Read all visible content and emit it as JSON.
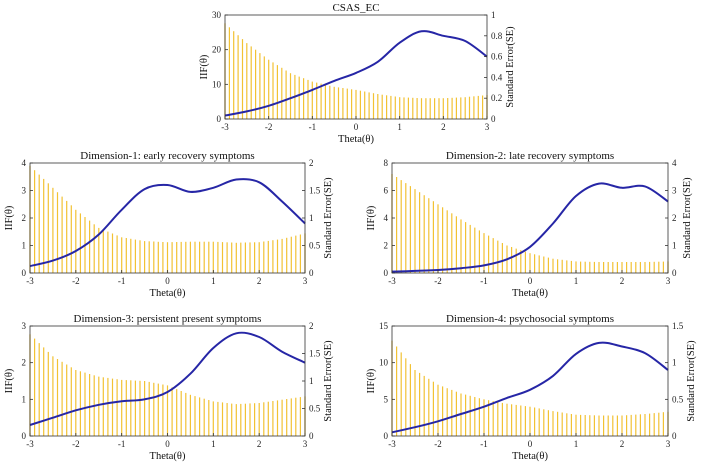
{
  "chart_data": [
    {
      "type": "line+bar",
      "title": "CSAS_EC",
      "xlabel": "Theta(θ)",
      "ylabel_left": "IIF(θ)",
      "ylabel_right": "Standard Error(SE)",
      "xlim": [
        -3,
        3
      ],
      "ylim_left": [
        0,
        30
      ],
      "ylim_right": [
        0,
        1
      ],
      "xticks": [
        "-3",
        "-2",
        "-1",
        "0",
        "1",
        "2",
        "3"
      ],
      "yticks_left": [
        "0",
        "10",
        "20",
        "30"
      ],
      "yticks_right": [
        "0",
        "0.2",
        "0.4",
        "0.6",
        "0.8",
        "1"
      ],
      "iif": {
        "x": [
          -3,
          -2.5,
          -2,
          -1.5,
          -1,
          -0.5,
          0,
          0.5,
          1,
          1.5,
          2,
          2.5,
          3
        ],
        "y": [
          1,
          2.2,
          3.8,
          6,
          8.4,
          11,
          13.3,
          16.5,
          22,
          25.3,
          24,
          22.5,
          18
        ]
      },
      "se": {
        "x": [
          -3,
          -2.5,
          -2,
          -1.5,
          -1,
          -0.5,
          0,
          0.5,
          1,
          1.5,
          2,
          2.5,
          3
        ],
        "y": [
          0.92,
          0.73,
          0.57,
          0.44,
          0.36,
          0.31,
          0.28,
          0.24,
          0.21,
          0.2,
          0.2,
          0.21,
          0.23
        ]
      }
    },
    {
      "type": "line+bar",
      "title": "Dimension-1: early recovery symptoms",
      "xlabel": "Theta(θ)",
      "ylabel_left": "IIF(θ)",
      "ylabel_right": "Standard Error(SE)",
      "xlim": [
        -3,
        3
      ],
      "ylim_left": [
        0,
        4
      ],
      "ylim_right": [
        0,
        2
      ],
      "xticks": [
        "-3",
        "-2",
        "-1",
        "0",
        "1",
        "2",
        "3"
      ],
      "yticks_left": [
        "0",
        "1",
        "2",
        "3",
        "4"
      ],
      "yticks_right": [
        "0",
        "0.5",
        "1",
        "1.5",
        "2"
      ],
      "iif": {
        "x": [
          -3,
          -2.5,
          -2,
          -1.5,
          -1,
          -0.5,
          0,
          0.5,
          1,
          1.5,
          2,
          2.5,
          3
        ],
        "y": [
          0.25,
          0.45,
          0.8,
          1.4,
          2.3,
          3.05,
          3.2,
          2.95,
          3.1,
          3.4,
          3.3,
          2.6,
          1.8
        ]
      },
      "se": {
        "x": [
          -3,
          -2.5,
          -2,
          -1.5,
          -1,
          -0.5,
          0,
          0.5,
          1,
          1.5,
          2,
          2.5,
          3
        ],
        "y": [
          1.95,
          1.55,
          1.15,
          0.82,
          0.65,
          0.58,
          0.56,
          0.57,
          0.57,
          0.55,
          0.56,
          0.62,
          0.72
        ]
      }
    },
    {
      "type": "line+bar",
      "title": "Dimension-2: late recovery symptoms",
      "xlabel": "Theta(θ)",
      "ylabel_left": "IIF(θ)",
      "ylabel_right": "Standard Error(SE)",
      "xlim": [
        -3,
        3
      ],
      "ylim_left": [
        0,
        8
      ],
      "ylim_right": [
        0,
        4
      ],
      "xticks": [
        "-3",
        "-2",
        "-1",
        "0",
        "1",
        "2",
        "3"
      ],
      "yticks_left": [
        "0",
        "2",
        "4",
        "6",
        "8"
      ],
      "yticks_right": [
        "0",
        "1",
        "2",
        "3",
        "4"
      ],
      "iif": {
        "x": [
          -3,
          -2.5,
          -2,
          -1.5,
          -1,
          -0.5,
          0,
          0.5,
          1,
          1.5,
          2,
          2.5,
          3
        ],
        "y": [
          0.1,
          0.15,
          0.22,
          0.35,
          0.55,
          1.0,
          1.9,
          3.6,
          5.6,
          6.5,
          6.2,
          6.3,
          5.2
        ]
      },
      "se": {
        "x": [
          -3,
          -2.5,
          -2,
          -1.5,
          -1,
          -0.5,
          0,
          0.5,
          1,
          1.5,
          2,
          2.5,
          3
        ],
        "y": [
          3.6,
          3.05,
          2.5,
          1.95,
          1.45,
          1.0,
          0.72,
          0.52,
          0.42,
          0.4,
          0.4,
          0.4,
          0.42
        ]
      }
    },
    {
      "type": "line+bar",
      "title": "Dimension-3: persistent present symptoms",
      "xlabel": "Theta(θ)",
      "ylabel_left": "IIF(θ)",
      "ylabel_right": "Standard Error(SE)",
      "xlim": [
        -3,
        3
      ],
      "ylim_left": [
        0,
        3
      ],
      "ylim_right": [
        0,
        2
      ],
      "xticks": [
        "-3",
        "-2",
        "-1",
        "0",
        "1",
        "2",
        "3"
      ],
      "yticks_left": [
        "0",
        "1",
        "2",
        "3"
      ],
      "yticks_right": [
        "0",
        "0.5",
        "1",
        "1.5",
        "2"
      ],
      "iif": {
        "x": [
          -3,
          -2.5,
          -2,
          -1.5,
          -1,
          -0.5,
          0,
          0.5,
          1,
          1.5,
          2,
          2.5,
          3
        ],
        "y": [
          0.3,
          0.5,
          0.7,
          0.85,
          0.95,
          1.0,
          1.2,
          1.7,
          2.4,
          2.8,
          2.7,
          2.3,
          2.0
        ]
      },
      "se": {
        "x": [
          -3,
          -2.5,
          -2,
          -1.5,
          -1,
          -0.5,
          0,
          0.5,
          1,
          1.5,
          2,
          2.5,
          3
        ],
        "y": [
          1.85,
          1.45,
          1.2,
          1.08,
          1.02,
          1.0,
          0.92,
          0.75,
          0.63,
          0.58,
          0.6,
          0.66,
          0.72
        ]
      }
    },
    {
      "type": "line+bar",
      "title": "Dimension-4: psychosocial symptoms",
      "xlabel": "Theta(θ)",
      "ylabel_left": "IIF(θ)",
      "ylabel_right": "Standard Error(SE)",
      "xlim": [
        -3,
        3
      ],
      "ylim_left": [
        0,
        15
      ],
      "ylim_right": [
        0,
        1.5
      ],
      "xticks": [
        "-3",
        "-2",
        "-1",
        "0",
        "1",
        "2",
        "3"
      ],
      "yticks_left": [
        "0",
        "5",
        "10",
        "15"
      ],
      "yticks_right": [
        "0",
        "0.5",
        "1",
        "1.5"
      ],
      "iif": {
        "x": [
          -3,
          -2.5,
          -2,
          -1.5,
          -1,
          -0.5,
          0,
          0.5,
          1,
          1.5,
          2,
          2.5,
          3
        ],
        "y": [
          0.5,
          1.2,
          2.0,
          3.0,
          4.0,
          5.2,
          6.3,
          8.2,
          11.2,
          12.7,
          12.2,
          11.3,
          9.0
        ]
      },
      "se": {
        "x": [
          -3,
          -2.5,
          -2,
          -1.5,
          -1,
          -0.5,
          0,
          0.5,
          1,
          1.5,
          2,
          2.5,
          3
        ],
        "y": [
          1.3,
          0.9,
          0.7,
          0.58,
          0.5,
          0.44,
          0.4,
          0.34,
          0.29,
          0.28,
          0.28,
          0.3,
          0.33
        ]
      }
    }
  ]
}
